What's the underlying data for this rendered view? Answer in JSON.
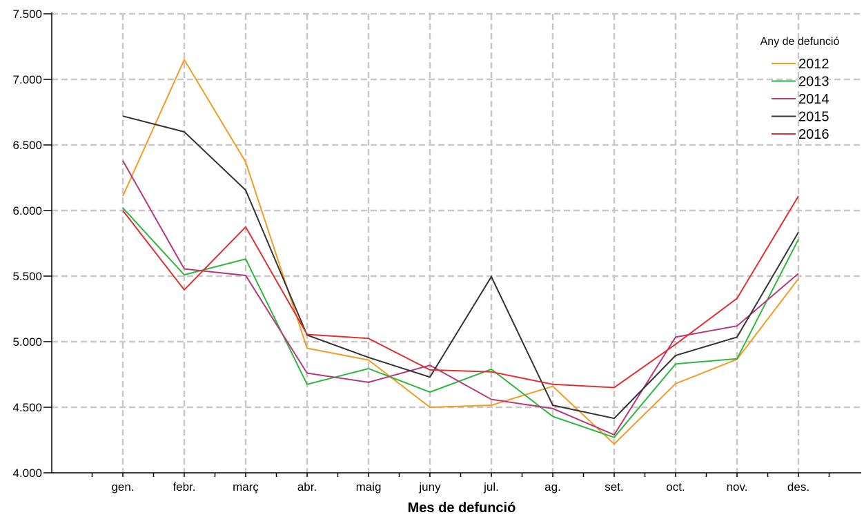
{
  "chart_data": {
    "type": "line",
    "xlabel": "Mes de defunció",
    "ylabel": "",
    "categories": [
      "gen.",
      "febr.",
      "març",
      "abr.",
      "maig",
      "juny",
      "jul.",
      "ag.",
      "set.",
      "oct.",
      "nov.",
      "des."
    ],
    "ylim": [
      4000,
      7500
    ],
    "yticks": [
      4000,
      4500,
      5000,
      5500,
      6000,
      6500,
      7000,
      7500
    ],
    "ytick_labels": [
      "4.000",
      "4.500",
      "5.000",
      "5.500",
      "6.000",
      "6.500",
      "7.000",
      "7.500"
    ],
    "grid": true,
    "legend": {
      "title": "Any de defunció",
      "position": "top-right"
    },
    "series": [
      {
        "name": "2012",
        "color": "#f59a23",
        "values": [
          6110,
          7150,
          6370,
          4950,
          4860,
          4500,
          4515,
          4660,
          4220,
          4680,
          4865,
          5480
        ]
      },
      {
        "name": "2013",
        "color": "#2db83d",
        "values": [
          6020,
          5510,
          5630,
          4675,
          4795,
          4615,
          4790,
          4430,
          4270,
          4830,
          4870,
          5780
        ]
      },
      {
        "name": "2014",
        "color": "#b83878",
        "values": [
          6380,
          5555,
          5505,
          4760,
          4690,
          4820,
          4560,
          4490,
          4290,
          5035,
          5120,
          5520
        ]
      },
      {
        "name": "2015",
        "color": "#333333",
        "values": [
          6720,
          6600,
          6155,
          5050,
          4880,
          4730,
          5495,
          4515,
          4415,
          4895,
          5035,
          5835
        ]
      },
      {
        "name": "2016",
        "color": "#e03030",
        "values": [
          6000,
          5395,
          5875,
          5055,
          5025,
          4785,
          4770,
          4675,
          4650,
          4980,
          5330,
          6110
        ]
      }
    ]
  }
}
